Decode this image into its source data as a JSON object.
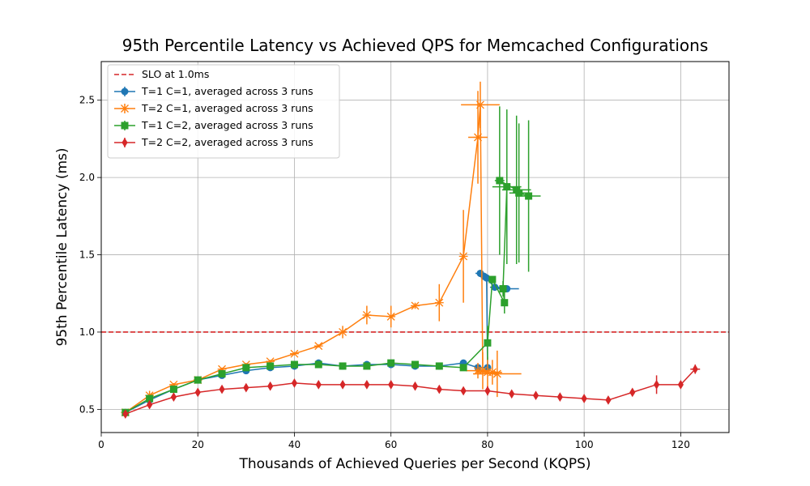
{
  "chart_data": {
    "type": "line",
    "title": "95th Percentile Latency vs Achieved QPS for Memcached Configurations",
    "xlabel": "Thousands of Achieved Queries per Second (KQPS)",
    "ylabel": "95th Percentile Latency (ms)",
    "xlim": [
      0,
      130
    ],
    "ylim": [
      0.35,
      2.75
    ],
    "xticks": [
      "0",
      "20",
      "40",
      "60",
      "80",
      "100",
      "120"
    ],
    "yticks": [
      "0.5",
      "1.0",
      "1.5",
      "2.0",
      "2.5"
    ],
    "grid": true,
    "legend_position": "top-left",
    "slo": {
      "label": "SLO at 1.0ms",
      "value": 1.0,
      "color": "#d62728"
    },
    "series": [
      {
        "name": "T=1 C=1, averaged across 3 runs",
        "color": "#1f77b4",
        "marker": "circle",
        "points": [
          {
            "x": 5,
            "y": 0.48,
            "xerr": 0,
            "yerr": 0.01
          },
          {
            "x": 10,
            "y": 0.56,
            "xerr": 0,
            "yerr": 0.01
          },
          {
            "x": 15,
            "y": 0.63,
            "xerr": 0,
            "yerr": 0.01
          },
          {
            "x": 20,
            "y": 0.69,
            "xerr": 0,
            "yerr": 0.01
          },
          {
            "x": 25,
            "y": 0.72,
            "xerr": 0,
            "yerr": 0.01
          },
          {
            "x": 30,
            "y": 0.75,
            "xerr": 0,
            "yerr": 0.01
          },
          {
            "x": 35,
            "y": 0.77,
            "xerr": 0,
            "yerr": 0.01
          },
          {
            "x": 40,
            "y": 0.78,
            "xerr": 0,
            "yerr": 0.01
          },
          {
            "x": 45,
            "y": 0.8,
            "xerr": 0,
            "yerr": 0.01
          },
          {
            "x": 50,
            "y": 0.78,
            "xerr": 0,
            "yerr": 0.01
          },
          {
            "x": 55,
            "y": 0.79,
            "xerr": 0,
            "yerr": 0.01
          },
          {
            "x": 60,
            "y": 0.79,
            "xerr": 0,
            "yerr": 0.01
          },
          {
            "x": 65,
            "y": 0.78,
            "xerr": 0,
            "yerr": 0.01
          },
          {
            "x": 70,
            "y": 0.78,
            "xerr": 0,
            "yerr": 0.01
          },
          {
            "x": 75,
            "y": 0.8,
            "xerr": 0,
            "yerr": 0.01
          },
          {
            "x": 78,
            "y": 0.77,
            "xerr": 0,
            "yerr": 0.01
          },
          {
            "x": 80,
            "y": 0.77,
            "xerr": 0,
            "yerr": 0.01
          },
          {
            "x": 79.8,
            "y": 1.35,
            "xerr": 1,
            "yerr": 0.02
          },
          {
            "x": 78.5,
            "y": 1.38,
            "xerr": 1,
            "yerr": 0.02
          },
          {
            "x": 79.3,
            "y": 1.36,
            "xerr": 1,
            "yerr": 0.02
          },
          {
            "x": 81.5,
            "y": 1.29,
            "xerr": 1,
            "yerr": 0.02
          },
          {
            "x": 84,
            "y": 1.28,
            "xerr": 2.5,
            "yerr": 0.02
          }
        ]
      },
      {
        "name": "T=2 C=1, averaged across 3 runs",
        "color": "#ff7f0e",
        "marker": "x",
        "points": [
          {
            "x": 5,
            "y": 0.48,
            "xerr": 0,
            "yerr": 0.01
          },
          {
            "x": 10,
            "y": 0.59,
            "xerr": 0,
            "yerr": 0.03
          },
          {
            "x": 15,
            "y": 0.66,
            "xerr": 0,
            "yerr": 0.01
          },
          {
            "x": 20,
            "y": 0.69,
            "xerr": 0,
            "yerr": 0.01
          },
          {
            "x": 25,
            "y": 0.76,
            "xerr": 0,
            "yerr": 0.01
          },
          {
            "x": 30,
            "y": 0.79,
            "xerr": 0,
            "yerr": 0.01
          },
          {
            "x": 35,
            "y": 0.81,
            "xerr": 0,
            "yerr": 0.01
          },
          {
            "x": 40,
            "y": 0.86,
            "xerr": 0,
            "yerr": 0.01
          },
          {
            "x": 45,
            "y": 0.91,
            "xerr": 0,
            "yerr": 0.01
          },
          {
            "x": 50,
            "y": 1.0,
            "xerr": 0,
            "yerr": 0.04
          },
          {
            "x": 55,
            "y": 1.11,
            "xerr": 0,
            "yerr": 0.06
          },
          {
            "x": 60,
            "y": 1.1,
            "xerr": 0,
            "yerr": 0.07
          },
          {
            "x": 65,
            "y": 1.17,
            "xerr": 0,
            "yerr": 0.02
          },
          {
            "x": 70,
            "y": 1.19,
            "xerr": 0,
            "yerr": 0.12
          },
          {
            "x": 75,
            "y": 1.49,
            "xerr": 0,
            "yerr": 0.3
          },
          {
            "x": 78,
            "y": 2.26,
            "xerr": 2,
            "yerr": 0.3
          },
          {
            "x": 78.5,
            "y": 2.47,
            "xerr": 4,
            "yerr": 0.15
          },
          {
            "x": 79,
            "y": 0.75,
            "xerr": 1.5,
            "yerr": 0.12
          },
          {
            "x": 80,
            "y": 0.74,
            "xerr": 2.5,
            "yerr": 0.1
          },
          {
            "x": 81,
            "y": 0.74,
            "xerr": 2,
            "yerr": 0.08
          },
          {
            "x": 82,
            "y": 0.73,
            "xerr": 5,
            "yerr": 0.15
          },
          {
            "x": 78,
            "y": 0.75,
            "xerr": 2.5,
            "yerr": 0.05
          }
        ]
      },
      {
        "name": "T=1 C=2, averaged across 3 runs",
        "color": "#2ca02c",
        "marker": "square",
        "points": [
          {
            "x": 5,
            "y": 0.48,
            "xerr": 0,
            "yerr": 0.01
          },
          {
            "x": 10,
            "y": 0.57,
            "xerr": 0,
            "yerr": 0.01
          },
          {
            "x": 15,
            "y": 0.63,
            "xerr": 0,
            "yerr": 0.01
          },
          {
            "x": 20,
            "y": 0.69,
            "xerr": 0,
            "yerr": 0.01
          },
          {
            "x": 25,
            "y": 0.73,
            "xerr": 0,
            "yerr": 0.01
          },
          {
            "x": 30,
            "y": 0.77,
            "xerr": 0,
            "yerr": 0.01
          },
          {
            "x": 35,
            "y": 0.78,
            "xerr": 0,
            "yerr": 0.01
          },
          {
            "x": 40,
            "y": 0.79,
            "xerr": 0,
            "yerr": 0.01
          },
          {
            "x": 45,
            "y": 0.79,
            "xerr": 0,
            "yerr": 0.01
          },
          {
            "x": 50,
            "y": 0.78,
            "xerr": 0,
            "yerr": 0.01
          },
          {
            "x": 55,
            "y": 0.78,
            "xerr": 0,
            "yerr": 0.01
          },
          {
            "x": 60,
            "y": 0.8,
            "xerr": 0,
            "yerr": 0.01
          },
          {
            "x": 65,
            "y": 0.79,
            "xerr": 0,
            "yerr": 0.01
          },
          {
            "x": 70,
            "y": 0.78,
            "xerr": 0,
            "yerr": 0.01
          },
          {
            "x": 75,
            "y": 0.77,
            "xerr": 0,
            "yerr": 0.01
          },
          {
            "x": 80,
            "y": 0.93,
            "xerr": 0,
            "yerr": 0.11
          },
          {
            "x": 81,
            "y": 1.34,
            "xerr": 0,
            "yerr": 0.02
          },
          {
            "x": 83.5,
            "y": 1.19,
            "xerr": 0,
            "yerr": 0.07
          },
          {
            "x": 83.2,
            "y": 1.28,
            "xerr": 0,
            "yerr": 0.05
          },
          {
            "x": 84,
            "y": 1.94,
            "xerr": 3,
            "yerr": 0.5
          },
          {
            "x": 82.5,
            "y": 1.98,
            "xerr": 1,
            "yerr": 0.48
          },
          {
            "x": 86,
            "y": 1.92,
            "xerr": 3,
            "yerr": 0.48
          },
          {
            "x": 86.5,
            "y": 1.9,
            "xerr": 2,
            "yerr": 0.45
          },
          {
            "x": 88.5,
            "y": 1.88,
            "xerr": 2.5,
            "yerr": 0.49
          }
        ]
      },
      {
        "name": "T=2 C=2, averaged across 3 runs",
        "color": "#d62728",
        "marker": "diamond",
        "points": [
          {
            "x": 5,
            "y": 0.47,
            "xerr": 0,
            "yerr": 0.01
          },
          {
            "x": 10,
            "y": 0.53,
            "xerr": 0,
            "yerr": 0.01
          },
          {
            "x": 15,
            "y": 0.58,
            "xerr": 0,
            "yerr": 0.01
          },
          {
            "x": 20,
            "y": 0.61,
            "xerr": 0,
            "yerr": 0.01
          },
          {
            "x": 25,
            "y": 0.63,
            "xerr": 0,
            "yerr": 0.01
          },
          {
            "x": 30,
            "y": 0.64,
            "xerr": 0,
            "yerr": 0.01
          },
          {
            "x": 35,
            "y": 0.65,
            "xerr": 0,
            "yerr": 0.01
          },
          {
            "x": 40,
            "y": 0.67,
            "xerr": 0,
            "yerr": 0.01
          },
          {
            "x": 45,
            "y": 0.66,
            "xerr": 0,
            "yerr": 0.01
          },
          {
            "x": 50,
            "y": 0.66,
            "xerr": 0,
            "yerr": 0.01
          },
          {
            "x": 55,
            "y": 0.66,
            "xerr": 0,
            "yerr": 0.01
          },
          {
            "x": 60,
            "y": 0.66,
            "xerr": 0,
            "yerr": 0.01
          },
          {
            "x": 65,
            "y": 0.65,
            "xerr": 0,
            "yerr": 0.01
          },
          {
            "x": 70,
            "y": 0.63,
            "xerr": 0,
            "yerr": 0.01
          },
          {
            "x": 75,
            "y": 0.62,
            "xerr": 0,
            "yerr": 0.01
          },
          {
            "x": 80,
            "y": 0.62,
            "xerr": 0,
            "yerr": 0.03
          },
          {
            "x": 85,
            "y": 0.6,
            "xerr": 0,
            "yerr": 0.02
          },
          {
            "x": 90,
            "y": 0.59,
            "xerr": 0,
            "yerr": 0.01
          },
          {
            "x": 95,
            "y": 0.58,
            "xerr": 0,
            "yerr": 0.01
          },
          {
            "x": 100,
            "y": 0.57,
            "xerr": 0,
            "yerr": 0.01
          },
          {
            "x": 105,
            "y": 0.56,
            "xerr": 0,
            "yerr": 0.01
          },
          {
            "x": 110,
            "y": 0.61,
            "xerr": 0,
            "yerr": 0.02
          },
          {
            "x": 115,
            "y": 0.66,
            "xerr": 0,
            "yerr": 0.06
          },
          {
            "x": 120,
            "y": 0.66,
            "xerr": 0,
            "yerr": 0.02
          },
          {
            "x": 123,
            "y": 0.76,
            "xerr": 1,
            "yerr": 0.03
          }
        ]
      }
    ]
  }
}
